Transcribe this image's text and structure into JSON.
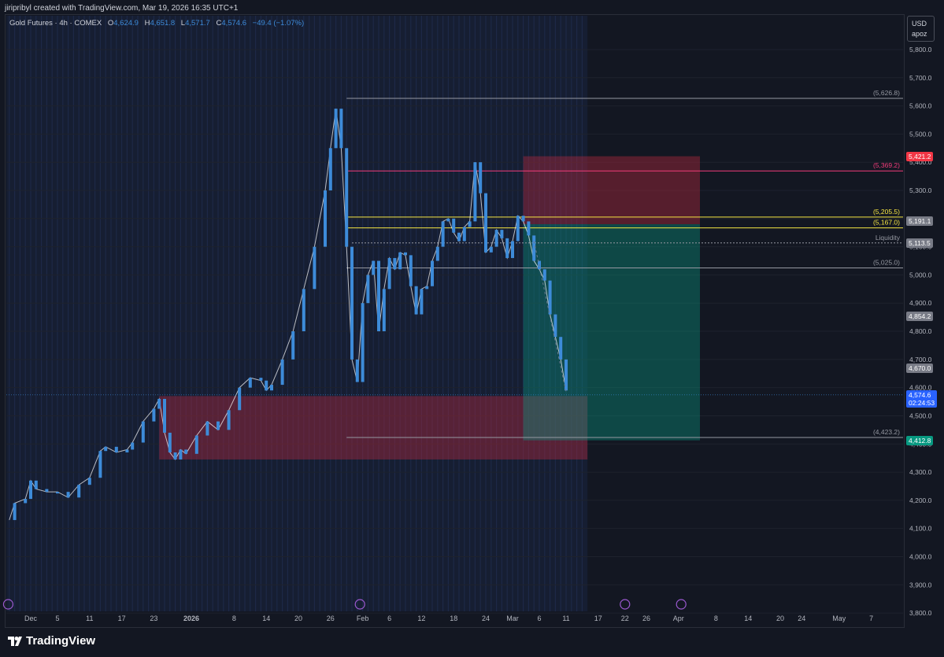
{
  "credit": "jiripribyl created with TradingView.com, Mar 19, 2026 16:35 UTC+1",
  "legend": {
    "symbol": "Gold Futures · 4h · COMEX",
    "o_label": "O",
    "o": "4,624.9",
    "h_label": "H",
    "h": "4,651.8",
    "l_label": "L",
    "l": "4,571.7",
    "c_label": "C",
    "c": "4,574.6",
    "change": "−49.4 (−1.07%)"
  },
  "currency": {
    "code": "USD",
    "user": "apoz"
  },
  "brand": "TradingView",
  "colors": {
    "background": "#131722",
    "candle": "#3d8bd9",
    "candle_wick": "#ffffff",
    "supply_zone": "#b2283e",
    "target_zone": "#089981",
    "level_pink": "#f23c7a",
    "level_yellow": "#f5e642",
    "level_gray": "#9598a1"
  },
  "chart_data": {
    "type": "candlestick",
    "title": "Gold Futures · 4h · COMEX",
    "ylim": [
      3750,
      5920
    ],
    "yaxis_ticks": [
      "3,800.0",
      "3,900.0",
      "4,000.0",
      "4,100.0",
      "4,200.0",
      "4,300.0",
      "4,400.0",
      "4,500.0",
      "4,600.0",
      "4,700.0",
      "4,800.0",
      "4,900.0",
      "5,000.0",
      "5,100.0",
      "5,200.0",
      "5,300.0",
      "5,400.0",
      "5,500.0",
      "5,600.0",
      "5,700.0",
      "5,800.0"
    ],
    "xaxis_ticks": [
      {
        "label": "Dec",
        "d": 0
      },
      {
        "label": "5",
        "d": 5
      },
      {
        "label": "11",
        "d": 11
      },
      {
        "label": "17",
        "d": 17
      },
      {
        "label": "23",
        "d": 23
      },
      {
        "label": "2026",
        "d": 30
      },
      {
        "label": "8",
        "d": 38
      },
      {
        "label": "14",
        "d": 44
      },
      {
        "label": "20",
        "d": 50
      },
      {
        "label": "26",
        "d": 56
      },
      {
        "label": "Feb",
        "d": 62
      },
      {
        "label": "6",
        "d": 67
      },
      {
        "label": "12",
        "d": 73
      },
      {
        "label": "18",
        "d": 79
      },
      {
        "label": "24",
        "d": 85
      },
      {
        "label": "Mar",
        "d": 90
      },
      {
        "label": "6",
        "d": 95
      },
      {
        "label": "11",
        "d": 100
      },
      {
        "label": "17",
        "d": 106
      },
      {
        "label": "22",
        "d": 111
      },
      {
        "label": "26",
        "d": 115
      },
      {
        "label": "Apr",
        "d": 121
      },
      {
        "label": "8",
        "d": 128
      },
      {
        "label": "14",
        "d": 134
      },
      {
        "label": "20",
        "d": 140
      },
      {
        "label": "24",
        "d": 144
      },
      {
        "label": "May",
        "d": 151
      },
      {
        "label": "7",
        "d": 157
      }
    ],
    "price_path": [
      [
        -4,
        4130
      ],
      [
        -3,
        4190
      ],
      [
        -1,
        4205
      ],
      [
        0,
        4270
      ],
      [
        1,
        4240
      ],
      [
        3,
        4230
      ],
      [
        5,
        4230
      ],
      [
        7,
        4210
      ],
      [
        9,
        4255
      ],
      [
        11,
        4280
      ],
      [
        13,
        4375
      ],
      [
        14,
        4390
      ],
      [
        16,
        4370
      ],
      [
        18,
        4380
      ],
      [
        19,
        4405
      ],
      [
        21,
        4480
      ],
      [
        23,
        4525
      ],
      [
        24,
        4560
      ],
      [
        25,
        4440
      ],
      [
        26,
        4370
      ],
      [
        27,
        4345
      ],
      [
        28,
        4380
      ],
      [
        29,
        4365
      ],
      [
        31,
        4430
      ],
      [
        33,
        4480
      ],
      [
        35,
        4450
      ],
      [
        37,
        4520
      ],
      [
        39,
        4600
      ],
      [
        41,
        4635
      ],
      [
        43,
        4625
      ],
      [
        44,
        4590
      ],
      [
        45,
        4610
      ],
      [
        47,
        4700
      ],
      [
        49,
        4800
      ],
      [
        51,
        4950
      ],
      [
        53,
        5100
      ],
      [
        55,
        5300
      ],
      [
        56,
        5450
      ],
      [
        57,
        5590
      ],
      [
        58,
        5450
      ],
      [
        59,
        5100
      ],
      [
        60,
        4700
      ],
      [
        61,
        4620
      ],
      [
        62,
        4900
      ],
      [
        63,
        5000
      ],
      [
        64,
        5050
      ],
      [
        65,
        4800
      ],
      [
        66,
        4950
      ],
      [
        67,
        5060
      ],
      [
        68,
        5020
      ],
      [
        69,
        5080
      ],
      [
        70,
        5070
      ],
      [
        71,
        4960
      ],
      [
        72,
        4860
      ],
      [
        73,
        4950
      ],
      [
        74,
        4960
      ],
      [
        75,
        5050
      ],
      [
        76,
        5100
      ],
      [
        77,
        5190
      ],
      [
        78,
        5200
      ],
      [
        79,
        5150
      ],
      [
        80,
        5120
      ],
      [
        81,
        5170
      ],
      [
        82,
        5190
      ],
      [
        83,
        5400
      ],
      [
        84,
        5290
      ],
      [
        85,
        5080
      ],
      [
        86,
        5100
      ],
      [
        87,
        5160
      ],
      [
        88,
        5130
      ],
      [
        89,
        5060
      ],
      [
        90,
        5120
      ],
      [
        91,
        5210
      ],
      [
        92,
        5190
      ],
      [
        93,
        5140
      ],
      [
        94,
        5050
      ],
      [
        95,
        5020
      ],
      [
        96,
        4980
      ],
      [
        97,
        4860
      ],
      [
        98,
        4780
      ],
      [
        99,
        4700
      ],
      [
        100,
        4590
      ]
    ],
    "last_price": 4574.6,
    "horizontal_levels": [
      {
        "label": "(5,626.8)",
        "value": 5626.8,
        "color": "gray"
      },
      {
        "label": "(5,369.2)",
        "value": 5369.2,
        "color": "pink"
      },
      {
        "label": "(5,205.5)",
        "value": 5205.5,
        "color": "yellow"
      },
      {
        "label": "(5,167.0)",
        "value": 5167.0,
        "color": "yellow"
      },
      {
        "label": "Liquidity",
        "value": 5113.5,
        "color": "gray"
      },
      {
        "label": "(5,025.0)",
        "value": 5025.0,
        "color": "gray"
      },
      {
        "label": "(4,423.2)",
        "value": 4423.2,
        "color": "gray"
      }
    ],
    "price_tags": [
      {
        "text": "5,421.2",
        "value": 5421.2,
        "bg": "#f23645"
      },
      {
        "text": "5,191.1",
        "value": 5191.1,
        "bg": "#787b86"
      },
      {
        "text": "5,113.5",
        "value": 5113.5,
        "bg": "#787b86"
      },
      {
        "text": "4,854.2",
        "value": 4854.2,
        "bg": "#787b86"
      },
      {
        "text": "4,670.0",
        "value": 4670.0,
        "bg": "#787b86"
      },
      {
        "text": "4,574.6",
        "text2": "02:24:53",
        "value": 4574.6,
        "bg": "#2962ff"
      },
      {
        "text": "4,412.8",
        "value": 4412.8,
        "bg": "#089981"
      }
    ],
    "zones": [
      {
        "name": "supply-demand-zone",
        "x0": 24,
        "x1": 104,
        "y0": 4345,
        "y1": 4570,
        "color": "red"
      },
      {
        "name": "short-stop-zone",
        "x0": 92,
        "x1": 125,
        "y0": 5180,
        "y1": 5421.2,
        "color": "red"
      },
      {
        "name": "short-target-zone",
        "x0": 92,
        "x1": 125,
        "y0": 4412.8,
        "y1": 5180,
        "color": "green"
      }
    ]
  }
}
